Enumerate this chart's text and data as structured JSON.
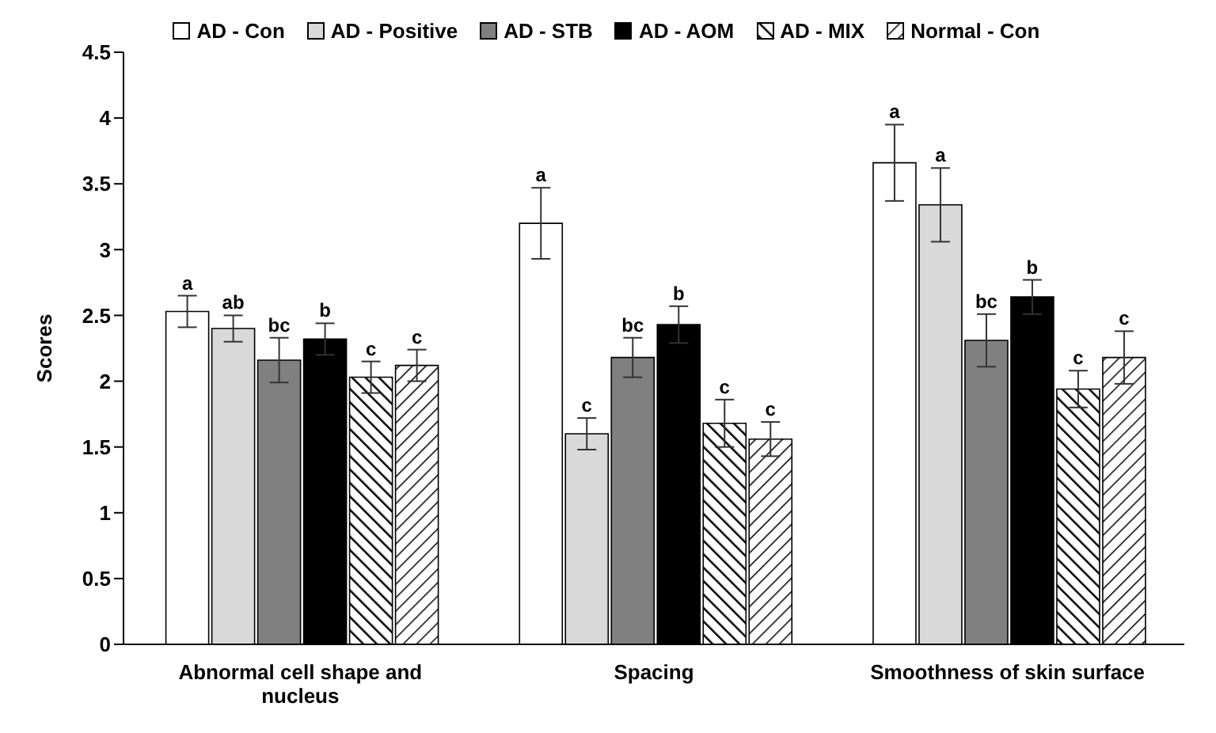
{
  "chart_data": {
    "type": "bar",
    "ylabel": "Scores",
    "categories": [
      "Abnormal cell shape and nucleus",
      "Spacing",
      "Smoothness of skin surface"
    ],
    "ylim": [
      0,
      4.5
    ],
    "yticks": [
      0,
      0.5,
      1,
      1.5,
      2,
      2.5,
      3,
      3.5,
      4,
      4.5
    ],
    "grid": false,
    "legend": "top",
    "series": [
      {
        "name": "AD - Con",
        "color": "#ffffff",
        "values": [
          2.53,
          3.2,
          3.66
        ],
        "errors": [
          0.12,
          0.27,
          0.29
        ],
        "value_labels": [
          "a",
          "a",
          "a"
        ]
      },
      {
        "name": "AD - Positive",
        "color": "#d9d9d9",
        "values": [
          2.4,
          1.6,
          3.34
        ],
        "errors": [
          0.1,
          0.12,
          0.28
        ],
        "value_labels": [
          "ab",
          "c",
          "a"
        ]
      },
      {
        "name": "AD - STB",
        "color": "#808080",
        "values": [
          2.16,
          2.18,
          2.31
        ],
        "errors": [
          0.17,
          0.15,
          0.2
        ],
        "value_labels": [
          "bc",
          "bc",
          "bc"
        ]
      },
      {
        "name": "AD - AOM",
        "color": "#000000",
        "values": [
          2.32,
          2.43,
          2.64
        ],
        "errors": [
          0.12,
          0.14,
          0.13
        ],
        "value_labels": [
          "b",
          "b",
          "b"
        ]
      },
      {
        "name": "AD - MIX",
        "color": "#000000",
        "values": [
          2.03,
          1.68,
          1.94
        ],
        "errors": [
          0.12,
          0.18,
          0.14
        ],
        "value_labels": [
          "c",
          "c",
          "c"
        ]
      },
      {
        "name": "Normal - Con",
        "color": "#000000",
        "values": [
          2.12,
          1.56,
          2.18
        ],
        "errors": [
          0.12,
          0.13,
          0.2
        ],
        "value_labels": [
          "c",
          "c",
          "c"
        ]
      }
    ]
  }
}
